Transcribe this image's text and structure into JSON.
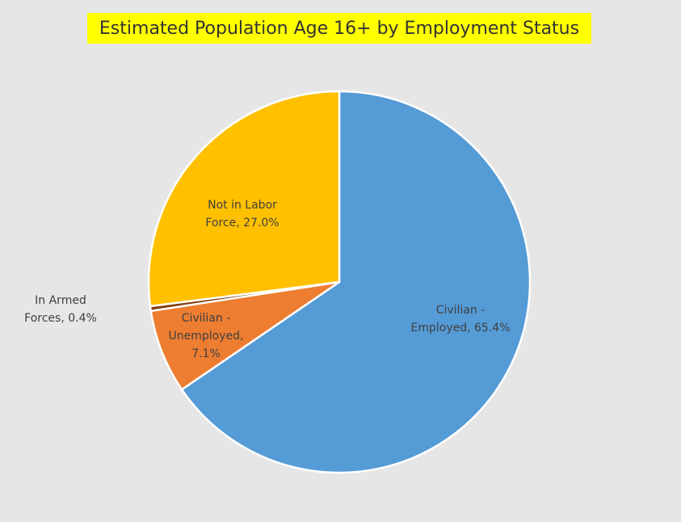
{
  "chart_data": {
    "type": "pie",
    "title": "Estimated Population Age 16+ by Employment Status",
    "values": [
      65.4,
      7.1,
      0.4,
      27.0
    ],
    "value_labels": [
      "Civilian - Employed, 65.4%",
      "Civilian - Unemployed, 7.1%",
      "In Armed Forces, 0.4%",
      "Not in Labor Force, 27.0%"
    ],
    "colors": [
      "#559bd6",
      "#ed7d31",
      "#843c0c",
      "#ffc000"
    ]
  }
}
